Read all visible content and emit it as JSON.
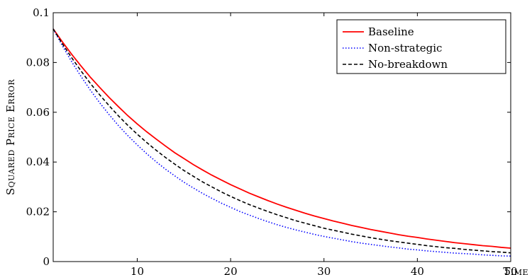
{
  "chart_data": {
    "type": "line",
    "xlabel": "Time",
    "ylabel": "Squared Price Error",
    "xlim": [
      1,
      50
    ],
    "ylim": [
      0,
      0.1
    ],
    "xticks": [
      10,
      20,
      30,
      40,
      50
    ],
    "yticks": [
      0,
      0.02,
      0.04,
      0.06,
      0.08,
      0.1
    ],
    "xtick_labels": [
      "10",
      "20",
      "30",
      "40",
      "50"
    ],
    "ytick_labels": [
      "0",
      "0.02",
      "0.04",
      "0.06",
      "0.08",
      "0.1"
    ],
    "grid": false,
    "legend_position": "top-right",
    "x": [
      1,
      2,
      3,
      4,
      5,
      6,
      7,
      8,
      9,
      10,
      11,
      12,
      13,
      14,
      15,
      16,
      17,
      18,
      19,
      20,
      21,
      22,
      23,
      24,
      25,
      26,
      27,
      28,
      29,
      30,
      31,
      32,
      33,
      34,
      35,
      36,
      37,
      38,
      39,
      40,
      41,
      42,
      43,
      44,
      45,
      46,
      47,
      48,
      49,
      50
    ],
    "series": [
      {
        "name": "Baseline",
        "color": "#ff0000",
        "style": "solid",
        "values": [
          0.0935,
          0.0882,
          0.0832,
          0.0785,
          0.074,
          0.0699,
          0.0659,
          0.0622,
          0.0586,
          0.0553,
          0.0522,
          0.0493,
          0.0465,
          0.0438,
          0.0414,
          0.039,
          0.0368,
          0.0347,
          0.0328,
          0.0309,
          0.0292,
          0.0275,
          0.026,
          0.0245,
          0.0231,
          0.0218,
          0.0206,
          0.0194,
          0.0183,
          0.0173,
          0.0163,
          0.0154,
          0.0145,
          0.0137,
          0.0129,
          0.0122,
          0.0115,
          0.0108,
          0.0102,
          0.0097,
          0.0091,
          0.0086,
          0.0081,
          0.0076,
          0.0072,
          0.0068,
          0.0064,
          0.0061,
          0.0057,
          0.0054
        ]
      },
      {
        "name": "Non-strategic",
        "color": "#0000ff",
        "style": "dotted",
        "values": [
          0.0935,
          0.0866,
          0.0802,
          0.0743,
          0.0688,
          0.0637,
          0.059,
          0.0546,
          0.0506,
          0.0469,
          0.0434,
          0.0402,
          0.0372,
          0.0345,
          0.0319,
          0.0296,
          0.0274,
          0.0254,
          0.0235,
          0.0218,
          0.0201,
          0.0187,
          0.0173,
          0.016,
          0.0148,
          0.0137,
          0.0127,
          0.0118,
          0.0109,
          0.0101,
          0.0094,
          0.0087,
          0.008,
          0.0074,
          0.0069,
          0.0064,
          0.0059,
          0.0055,
          0.005,
          0.0047,
          0.0043,
          0.004,
          0.0037,
          0.0034,
          0.0032,
          0.003,
          0.0027,
          0.0025,
          0.0023,
          0.0022
        ]
      },
      {
        "name": "No-breakdown",
        "color": "#000000",
        "style": "dashed",
        "values": [
          0.0935,
          0.0874,
          0.0818,
          0.0765,
          0.0715,
          0.0669,
          0.0626,
          0.0585,
          0.0547,
          0.0512,
          0.0479,
          0.0448,
          0.0419,
          0.0392,
          0.0366,
          0.0343,
          0.032,
          0.03,
          0.028,
          0.0262,
          0.0245,
          0.0229,
          0.0215,
          0.0201,
          0.0188,
          0.0176,
          0.0164,
          0.0154,
          0.0144,
          0.0134,
          0.0126,
          0.0118,
          0.011,
          0.0103,
          0.0096,
          0.009,
          0.0084,
          0.0079,
          0.0074,
          0.0069,
          0.0064,
          0.006,
          0.0056,
          0.0053,
          0.0049,
          0.0046,
          0.0043,
          0.004,
          0.0038,
          0.0035
        ]
      }
    ]
  }
}
